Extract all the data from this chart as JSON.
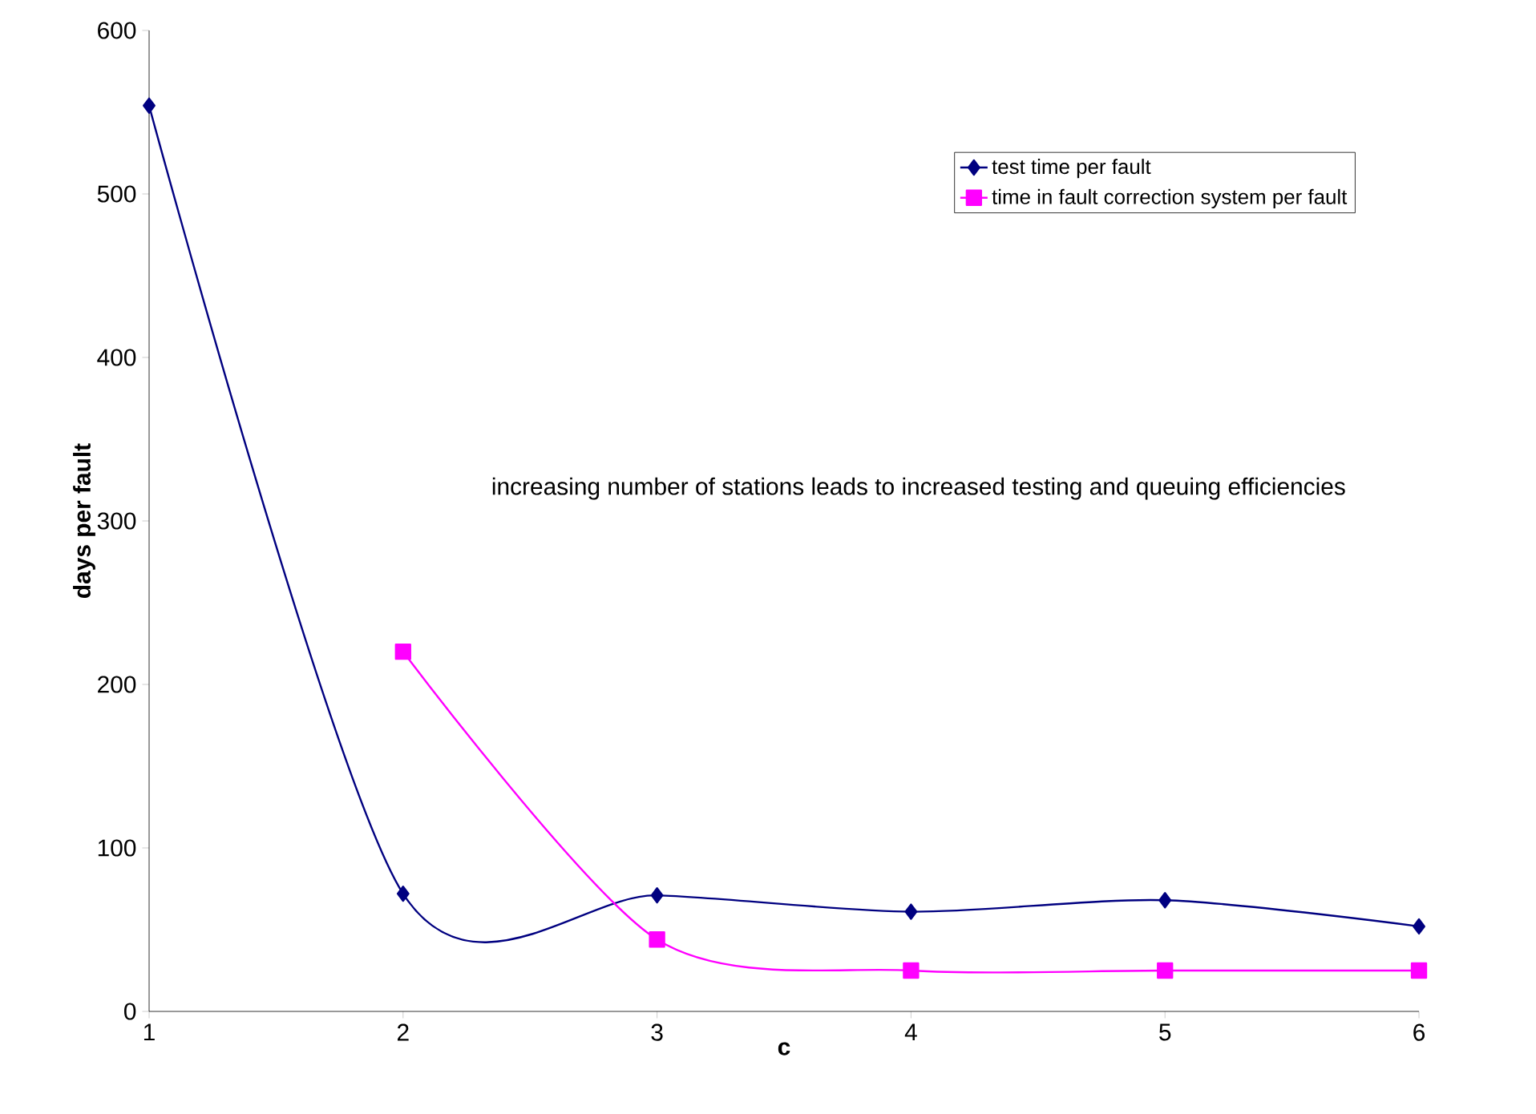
{
  "chart_data": {
    "type": "line",
    "xlabel": "c",
    "ylabel": "days per fault",
    "x": [
      1,
      2,
      3,
      4,
      5,
      6
    ],
    "series": [
      {
        "name": "test time per fault",
        "color": "#000080",
        "marker": "diamond",
        "values": [
          554,
          72,
          71,
          61,
          68,
          52
        ]
      },
      {
        "name": "time in fault correction system per fault",
        "color": "#ff00ff",
        "marker": "square",
        "values": [
          null,
          220,
          44,
          25,
          25,
          25
        ]
      }
    ],
    "xlim": [
      1,
      6
    ],
    "xticks": [
      1,
      2,
      3,
      4,
      5,
      6
    ],
    "ylim": [
      0,
      600
    ],
    "yticks": [
      0,
      100,
      200,
      300,
      400,
      500,
      600
    ],
    "grid": false,
    "legend": "top right",
    "annotations": [
      "increasing number of stations leads to increased testing and queuing efficiencies"
    ]
  }
}
